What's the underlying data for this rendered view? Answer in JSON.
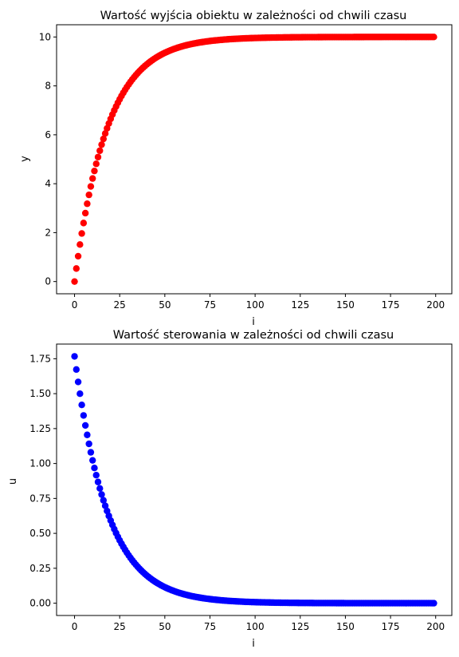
{
  "chart_data": [
    {
      "type": "scatter",
      "title": "Wartość wyjścia obiektu w zależności od chwili czasu",
      "xlabel": "i",
      "ylabel": "y",
      "xlim": [
        -9.95,
        208.95
      ],
      "ylim": [
        -0.5,
        10.5
      ],
      "xticks": [
        0,
        25,
        50,
        75,
        100,
        125,
        150,
        175,
        200
      ],
      "yticks": [
        0,
        2,
        4,
        6,
        8,
        10
      ],
      "ytick_labels": [
        "0",
        "2",
        "4",
        "6",
        "8",
        "10"
      ],
      "grid": false,
      "color": "#ff0000",
      "marker": "circle",
      "model": {
        "n_points": 200,
        "x_start": 0,
        "x_step": 1,
        "y_final": 10,
        "decay_rate": 0.0547
      },
      "note": "y(i) = 10 * (1 - exp(-0.0547*i)); starts at 0, passes ~5.4 at i=14, ~8.9 at i=40, settles at 10"
    },
    {
      "type": "scatter",
      "title": "Wartość sterowania w zależności od chwili czasu",
      "xlabel": "i",
      "ylabel": "u",
      "xlim": [
        -9.95,
        208.95
      ],
      "ylim": [
        -0.088,
        1.855
      ],
      "xticks": [
        0,
        25,
        50,
        75,
        100,
        125,
        150,
        175,
        200
      ],
      "yticks": [
        0,
        0.25,
        0.5,
        0.75,
        1.0,
        1.25,
        1.5,
        1.75
      ],
      "ytick_labels": [
        "0.00",
        "0.25",
        "0.50",
        "0.75",
        "1.00",
        "1.25",
        "1.50",
        "1.75"
      ],
      "grid": false,
      "color": "#0000ff",
      "marker": "circle",
      "model": {
        "n_points": 200,
        "x_start": 0,
        "x_step": 1,
        "y_start": 1.767,
        "decay_rate": 0.0547
      },
      "note": "u(i) = 1.767 * exp(-0.0547*i); starts at ~1.77, ~0.83 at i=14, ~0.2 at i=40, ~0 after i=100"
    }
  ]
}
